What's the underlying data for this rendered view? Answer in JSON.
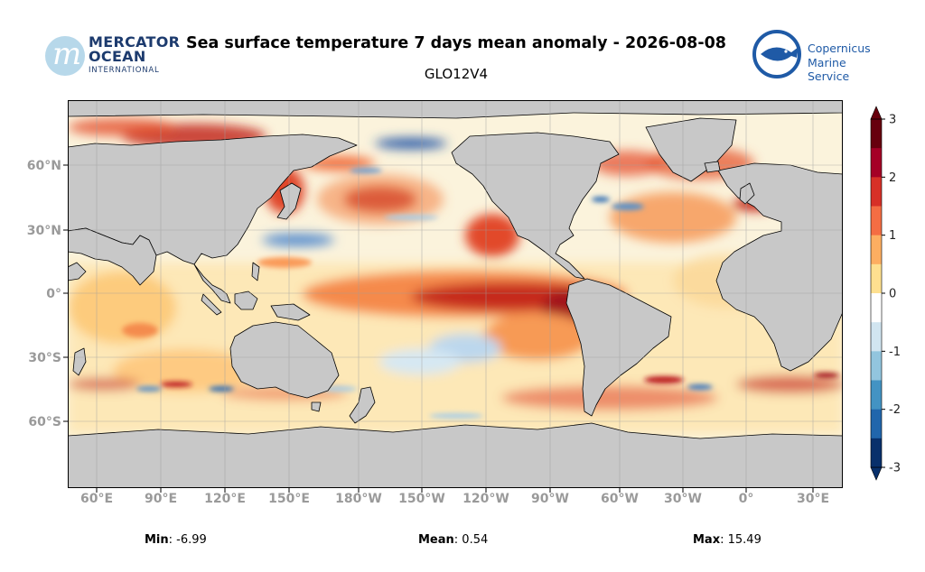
{
  "header": {
    "title": "Sea surface temperature 7 days mean anomaly - 2026-08-08",
    "subtitle": "GLO12V4"
  },
  "logos": {
    "left": {
      "line1": "MERCATOR",
      "line2": "OCEAN",
      "line3": "INTERNATIONAL",
      "mark": "m"
    },
    "right": {
      "line1": "Copernicus",
      "line2": "Marine Service",
      "icon": "fish-icon"
    }
  },
  "map": {
    "projection": "equirectangular",
    "lon_ticks": [
      "60°E",
      "90°E",
      "120°E",
      "150°E",
      "180°W",
      "150°W",
      "120°W",
      "90°W",
      "60°W",
      "30°W",
      "0°",
      "30°E"
    ],
    "lat_ticks": [
      "60°N",
      "30°N",
      "0°",
      "30°S",
      "60°S"
    ],
    "colors": {
      "land": "#c8c8c8",
      "grid": "#b0b0b0",
      "coast": "#000000"
    }
  },
  "colorbar": {
    "ticks": [
      "3",
      "2",
      "1",
      "0",
      "-1",
      "-2",
      "-3"
    ],
    "min": -3,
    "max": 3,
    "colors": [
      "#08306b",
      "#2166ac",
      "#4393c3",
      "#92c5de",
      "#d1e5f0",
      "#ffffff",
      "#fee090",
      "#fdae61",
      "#f46d43",
      "#d73027",
      "#a50026",
      "#67000d"
    ]
  },
  "stats": {
    "min_label": "Min",
    "min_value": ": -6.99",
    "mean_label": "Mean",
    "mean_value": ": 0.54",
    "max_label": "Max",
    "max_value": ": 15.49"
  }
}
